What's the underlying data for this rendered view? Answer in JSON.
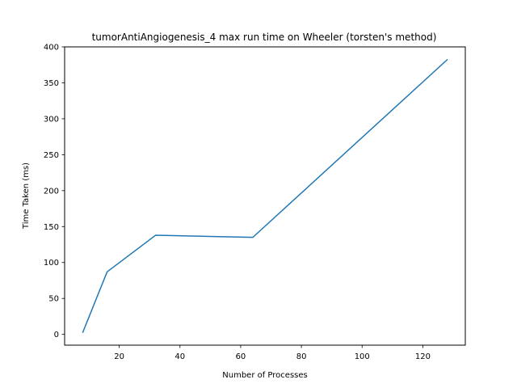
{
  "chart_data": {
    "type": "line",
    "title": "tumorAntiAngiogenesis_4 max run time on Wheeler (torsten's method)",
    "xlabel": "Number of Processes",
    "ylabel": "Time Taken (ms)",
    "xlim": [
      2,
      134
    ],
    "ylim": [
      -15,
      400
    ],
    "xticks": [
      20,
      40,
      60,
      80,
      100,
      120
    ],
    "yticks": [
      0,
      50,
      100,
      150,
      200,
      250,
      300,
      350,
      400
    ],
    "grid": false,
    "series": [
      {
        "color": "#1f77b4",
        "x": [
          8,
          16,
          32,
          64,
          128
        ],
        "y": [
          3,
          87,
          138,
          135,
          382
        ]
      }
    ]
  }
}
